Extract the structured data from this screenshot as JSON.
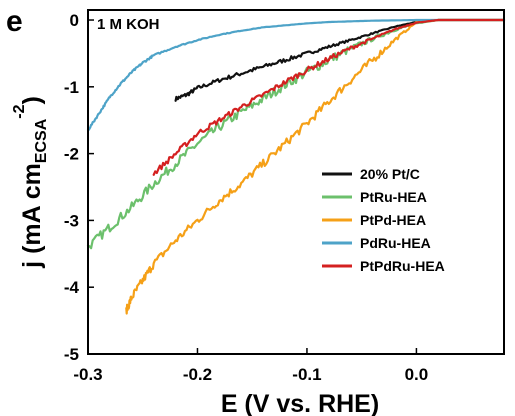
{
  "chart_data": {
    "type": "line",
    "panel_label": "e",
    "annotation": "1 M KOH",
    "xlabel": "E (V vs. RHE)",
    "ylabel_main": "j (mA cm",
    "ylabel_sub": "ECSA",
    "ylabel_sup": "-2",
    "ylabel_close": ")",
    "xlim": [
      -0.3,
      0.08
    ],
    "ylim": [
      -5,
      0.15
    ],
    "xticks": [
      -0.3,
      -0.2,
      -0.1,
      0.0
    ],
    "xtick_labels": [
      "-0.3",
      "-0.2",
      "-0.1",
      "0.0"
    ],
    "yticks": [
      -5,
      -4,
      -3,
      -2,
      -1,
      0
    ],
    "ytick_labels": [
      "-5",
      "-4",
      "-3",
      "-2",
      "-1",
      "0"
    ],
    "grid": false,
    "legend_position": "middle-right",
    "series": [
      {
        "name": "20% Pt/C",
        "color": "#111111",
        "noise": 0.03,
        "points": [
          [
            -0.22,
            -1.18
          ],
          [
            -0.21,
            -1.12
          ],
          [
            -0.2,
            -1.02
          ],
          [
            -0.18,
            -0.9
          ],
          [
            -0.16,
            -0.8
          ],
          [
            -0.14,
            -0.7
          ],
          [
            -0.12,
            -0.6
          ],
          [
            -0.1,
            -0.5
          ],
          [
            -0.08,
            -0.4
          ],
          [
            -0.06,
            -0.3
          ],
          [
            -0.04,
            -0.2
          ],
          [
            -0.02,
            -0.1
          ],
          [
            0.0,
            -0.03
          ],
          [
            0.02,
            0.0
          ],
          [
            0.08,
            0.0
          ]
        ]
      },
      {
        "name": "PtRu-HEA",
        "color": "#6cc06c",
        "noise": 0.07,
        "points": [
          [
            -0.3,
            -3.4
          ],
          [
            -0.28,
            -3.1
          ],
          [
            -0.26,
            -2.8
          ],
          [
            -0.24,
            -2.45
          ],
          [
            -0.22,
            -2.15
          ],
          [
            -0.2,
            -1.85
          ],
          [
            -0.18,
            -1.6
          ],
          [
            -0.16,
            -1.38
          ],
          [
            -0.14,
            -1.18
          ],
          [
            -0.12,
            -0.97
          ],
          [
            -0.1,
            -0.78
          ],
          [
            -0.08,
            -0.6
          ],
          [
            -0.06,
            -0.43
          ],
          [
            -0.04,
            -0.28
          ],
          [
            -0.02,
            -0.15
          ],
          [
            0.0,
            -0.05
          ],
          [
            0.02,
            0.0
          ],
          [
            0.08,
            0.0
          ]
        ]
      },
      {
        "name": "PtPd-HEA",
        "color": "#f5a017",
        "noise": 0.06,
        "points": [
          [
            -0.265,
            -4.35
          ],
          [
            -0.26,
            -4.15
          ],
          [
            -0.25,
            -3.9
          ],
          [
            -0.24,
            -3.65
          ],
          [
            -0.22,
            -3.3
          ],
          [
            -0.2,
            -3.0
          ],
          [
            -0.18,
            -2.7
          ],
          [
            -0.16,
            -2.45
          ],
          [
            -0.14,
            -2.15
          ],
          [
            -0.12,
            -1.85
          ],
          [
            -0.1,
            -1.55
          ],
          [
            -0.08,
            -1.22
          ],
          [
            -0.06,
            -0.9
          ],
          [
            -0.04,
            -0.6
          ],
          [
            -0.02,
            -0.3
          ],
          [
            0.0,
            -0.03
          ],
          [
            0.02,
            0.0
          ],
          [
            0.08,
            0.0
          ]
        ]
      },
      {
        "name": "PdRu-HEA",
        "color": "#4ea3c8",
        "noise": 0.015,
        "points": [
          [
            -0.3,
            -1.65
          ],
          [
            -0.29,
            -1.4
          ],
          [
            -0.28,
            -1.15
          ],
          [
            -0.27,
            -0.95
          ],
          [
            -0.26,
            -0.78
          ],
          [
            -0.25,
            -0.64
          ],
          [
            -0.24,
            -0.53
          ],
          [
            -0.22,
            -0.4
          ],
          [
            -0.2,
            -0.3
          ],
          [
            -0.18,
            -0.22
          ],
          [
            -0.16,
            -0.16
          ],
          [
            -0.14,
            -0.11
          ],
          [
            -0.12,
            -0.08
          ],
          [
            -0.1,
            -0.05
          ],
          [
            -0.08,
            -0.03
          ],
          [
            -0.06,
            -0.02
          ],
          [
            -0.04,
            -0.01
          ],
          [
            0.0,
            0.0
          ],
          [
            0.08,
            0.0
          ]
        ]
      },
      {
        "name": "PtPdRu-HEA",
        "color": "#d42020",
        "noise": 0.04,
        "points": [
          [
            -0.24,
            -2.3
          ],
          [
            -0.22,
            -2.0
          ],
          [
            -0.2,
            -1.7
          ],
          [
            -0.18,
            -1.5
          ],
          [
            -0.16,
            -1.3
          ],
          [
            -0.14,
            -1.12
          ],
          [
            -0.12,
            -0.93
          ],
          [
            -0.1,
            -0.75
          ],
          [
            -0.08,
            -0.58
          ],
          [
            -0.06,
            -0.42
          ],
          [
            -0.04,
            -0.28
          ],
          [
            -0.02,
            -0.14
          ],
          [
            0.0,
            -0.04
          ],
          [
            0.02,
            0.0
          ],
          [
            0.08,
            0.0
          ]
        ]
      }
    ]
  }
}
